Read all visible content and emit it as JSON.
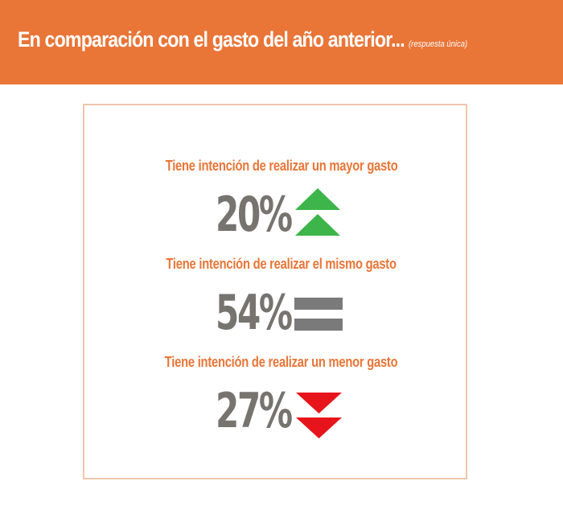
{
  "header": {
    "title": "En comparación con el gasto del año anterior...",
    "note": "(respuesta única)"
  },
  "items": [
    {
      "label": "Tiene intención de realizar un mayor gasto",
      "value": "20%",
      "icon": "double-up-arrow-icon",
      "color": "#3DB54A"
    },
    {
      "label": "Tiene intención de realizar el mismo gasto",
      "value": "54%",
      "icon": "equals-icon",
      "color": "#7A7A7A"
    },
    {
      "label": "Tiene intención de realizar un menor gasto",
      "value": "27%",
      "icon": "double-down-arrow-icon",
      "color": "#E8141B"
    }
  ],
  "colors": {
    "accent": "#E97537",
    "border": "#EFC6AC",
    "value_text": "#77736F"
  }
}
